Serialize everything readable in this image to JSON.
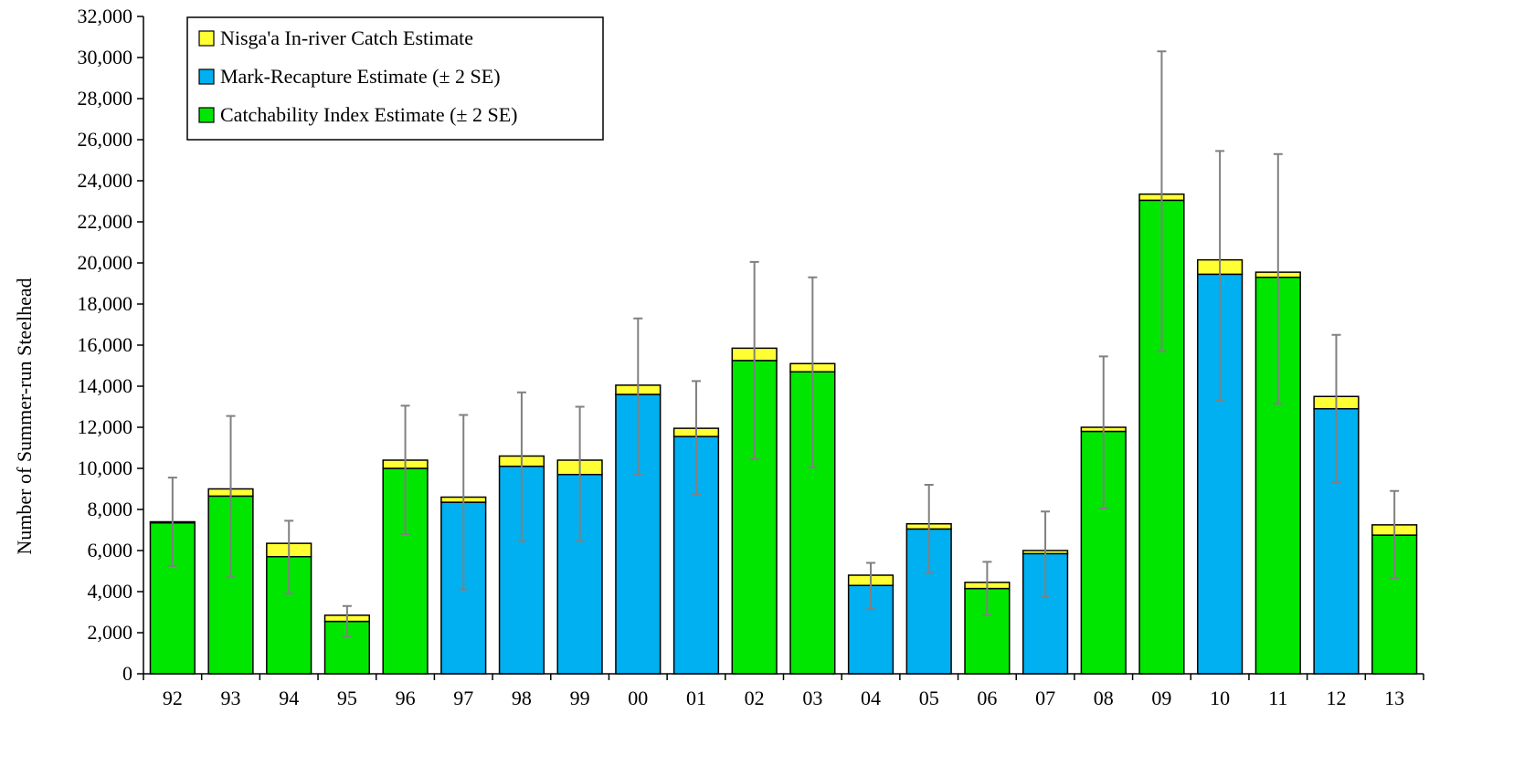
{
  "colors": {
    "nisgaa": "#FFFF33",
    "mark_recapture": "#00B0F0",
    "catchability": "#00E600",
    "error_bar": "#808080",
    "outline": "#000000"
  },
  "chart_data": {
    "type": "bar",
    "stacked": true,
    "title": "",
    "xlabel": "",
    "ylabel": "Number of Summer-run Steelhead",
    "ylim": [
      0,
      32000
    ],
    "y_ticks": [
      0,
      2000,
      4000,
      6000,
      8000,
      10000,
      12000,
      14000,
      16000,
      18000,
      20000,
      22000,
      24000,
      26000,
      28000,
      30000,
      32000
    ],
    "y_tick_labels": [
      "0",
      "2,000",
      "4,000",
      "6,000",
      "8,000",
      "10,000",
      "12,000",
      "14,000",
      "16,000",
      "18,000",
      "20,000",
      "22,000",
      "24,000",
      "26,000",
      "28,000",
      "30,000",
      "32,000"
    ],
    "grid": false,
    "legend_position": "top-left",
    "legend": [
      {
        "name": "Nisga'a In-river Catch Estimate",
        "color_key": "nisgaa"
      },
      {
        "name": "Mark-Recapture Estimate (± 2 SE)",
        "color_key": "mark_recapture"
      },
      {
        "name": "Catchability Index Estimate  (± 2 SE)",
        "color_key": "catchability"
      }
    ],
    "categories": [
      "92",
      "93",
      "94",
      "95",
      "96",
      "97",
      "98",
      "99",
      "00",
      "01",
      "02",
      "03",
      "04",
      "05",
      "06",
      "07",
      "08",
      "09",
      "10",
      "11",
      "12",
      "13"
    ],
    "method": [
      "catchability",
      "catchability",
      "catchability",
      "catchability",
      "catchability",
      "mark_recapture",
      "mark_recapture",
      "mark_recapture",
      "mark_recapture",
      "mark_recapture",
      "catchability",
      "catchability",
      "mark_recapture",
      "mark_recapture",
      "catchability",
      "mark_recapture",
      "catchability",
      "catchability",
      "mark_recapture",
      "catchability",
      "mark_recapture",
      "catchability"
    ],
    "series": [
      {
        "name": "Mark-Recapture Estimate (± 2 SE) / Catchability Index Estimate  (± 2 SE)",
        "values": [
          7350,
          8650,
          5700,
          2550,
          10000,
          8350,
          10100,
          9700,
          13600,
          11550,
          15250,
          14700,
          4300,
          7050,
          4150,
          5850,
          11800,
          23050,
          19450,
          19300,
          12900,
          6750
        ]
      },
      {
        "name": "Nisga'a In-river Catch Estimate",
        "values": [
          50,
          350,
          650,
          300,
          400,
          250,
          500,
          700,
          450,
          400,
          600,
          400,
          500,
          250,
          300,
          150,
          200,
          300,
          700,
          250,
          600,
          500
        ]
      }
    ],
    "error_bars": {
      "lower": [
        5250,
        4700,
        3900,
        1800,
        6800,
        4100,
        6450,
        6450,
        9700,
        8750,
        10450,
        10050,
        3150,
        4900,
        2850,
        3750,
        8050,
        15700,
        13300,
        13150,
        9300,
        4650
      ],
      "upper": [
        9550,
        12550,
        7450,
        3300,
        13050,
        12600,
        13700,
        13000,
        17300,
        14250,
        20050,
        19300,
        5400,
        9200,
        5450,
        7900,
        15450,
        30300,
        25450,
        25300,
        16500,
        8900
      ]
    }
  }
}
